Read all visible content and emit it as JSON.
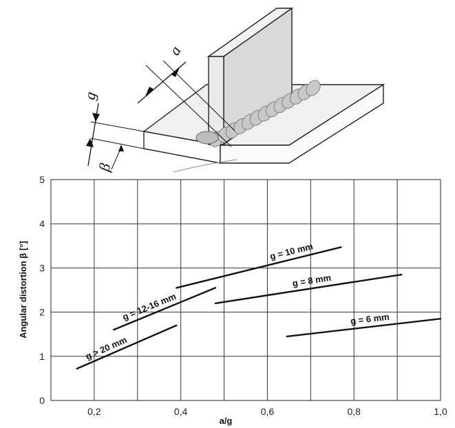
{
  "illustration": {
    "labels": {
      "throat": "a",
      "thickness": "g",
      "angle": "β"
    }
  },
  "chart_data": {
    "type": "line",
    "xlabel": "a/g",
    "ylabel": "Angular distortion β [°]",
    "xlim": [
      0.1,
      1.0
    ],
    "ylim": [
      0,
      5
    ],
    "xticks": [
      {
        "value": 0.2,
        "label": "0,2"
      },
      {
        "value": 0.4,
        "label": "0,4"
      },
      {
        "value": 0.6,
        "label": "0,6"
      },
      {
        "value": 0.8,
        "label": "0,8"
      },
      {
        "value": 1.0,
        "label": "1,0"
      }
    ],
    "yticks": [
      {
        "value": 0,
        "label": "0"
      },
      {
        "value": 1,
        "label": "1"
      },
      {
        "value": 2,
        "label": "2"
      },
      {
        "value": 3,
        "label": "3"
      },
      {
        "value": 4,
        "label": "4"
      },
      {
        "value": 5,
        "label": "5"
      }
    ],
    "xgrid": [
      0.2,
      0.3,
      0.4,
      0.5,
      0.6,
      0.7,
      0.8,
      0.9,
      1.0
    ],
    "grid": true,
    "series": [
      {
        "name": "g > 20 mm",
        "x": [
          0.16,
          0.39
        ],
        "y": [
          0.72,
          1.7
        ]
      },
      {
        "name": "g = 12-16 mm",
        "x": [
          0.245,
          0.48
        ],
        "y": [
          1.6,
          2.55
        ]
      },
      {
        "name": "g = 10 mm",
        "x": [
          0.39,
          0.77
        ],
        "y": [
          2.55,
          3.47
        ]
      },
      {
        "name": "g = 8 mm",
        "x": [
          0.48,
          0.91
        ],
        "y": [
          2.2,
          2.85
        ]
      },
      {
        "name": "g = 6 mm",
        "x": [
          0.645,
          1.0
        ],
        "y": [
          1.45,
          1.85
        ]
      }
    ]
  }
}
